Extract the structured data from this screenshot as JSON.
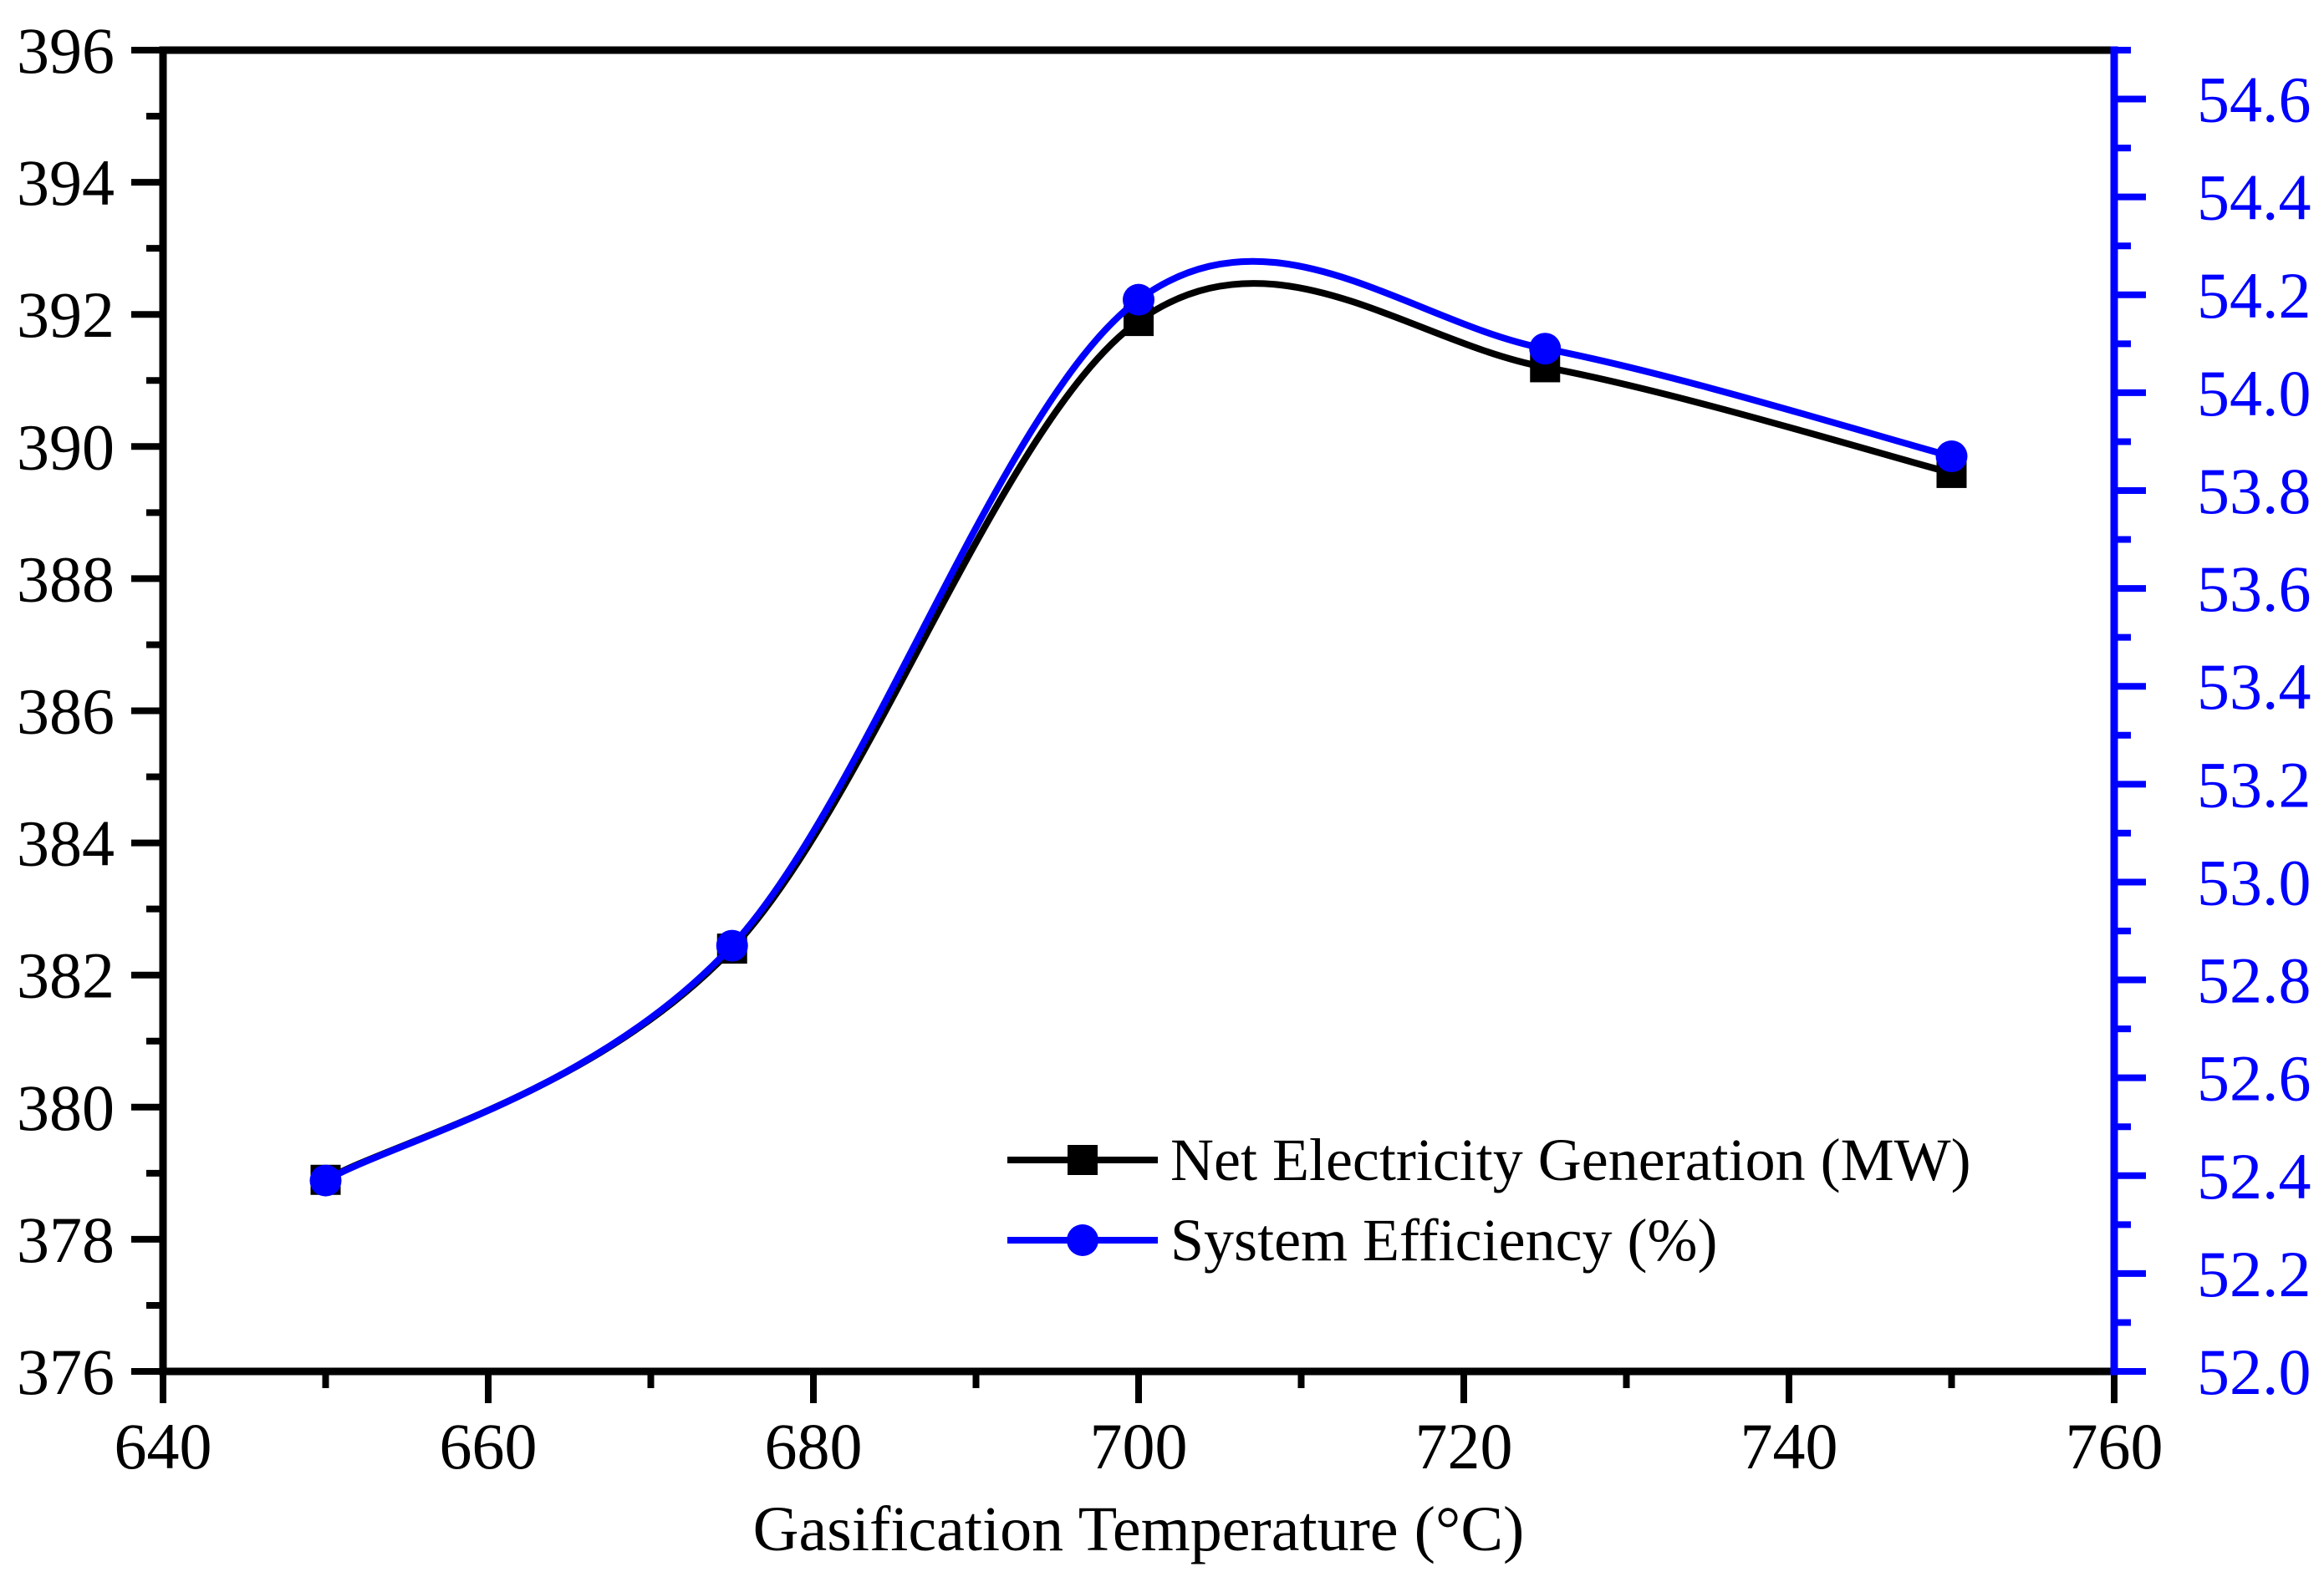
{
  "chart_data": {
    "type": "line",
    "title": "",
    "xlabel": "Gasification Temperature (°C)",
    "x": [
      650,
      675,
      700,
      725,
      750
    ],
    "series": [
      {
        "name": "Net Electricity Generation (MW)",
        "axis": "left",
        "color": "#000000",
        "marker": "square",
        "values": [
          378.9,
          382.4,
          391.9,
          391.2,
          389.6
        ]
      },
      {
        "name": "System Efficiency (%)",
        "axis": "right",
        "color": "#0000ff",
        "marker": "circle",
        "values": [
          52.39,
          52.87,
          54.19,
          54.09,
          53.87
        ]
      }
    ],
    "axes": {
      "x": {
        "label": "Gasification Temperature (°C)",
        "min": 640,
        "max": 760,
        "major_tick_labels": [
          "640",
          "660",
          "680",
          "700",
          "720",
          "740",
          "760"
        ],
        "minor_step": 10,
        "color": "#000000"
      },
      "y_left": {
        "min": 376,
        "max": 396,
        "major_tick_labels": [
          "376",
          "378",
          "380",
          "382",
          "384",
          "386",
          "388",
          "390",
          "392",
          "394",
          "396"
        ],
        "minor_step": 1,
        "color": "#000000"
      },
      "y_right": {
        "min": 52.0,
        "max": 54.7,
        "major_tick_labels": [
          "52.0",
          "52.2",
          "52.4",
          "52.6",
          "52.8",
          "53.0",
          "53.2",
          "53.4",
          "53.6",
          "53.8",
          "54.0",
          "54.2",
          "54.4",
          "54.6"
        ],
        "minor_step": 0.1,
        "color": "#0000ff"
      }
    },
    "legend": {
      "position": "inside-bottom-right",
      "entries": [
        "Net Electricity Generation (MW)",
        "System Efficiency (%)"
      ]
    },
    "grid": false
  }
}
